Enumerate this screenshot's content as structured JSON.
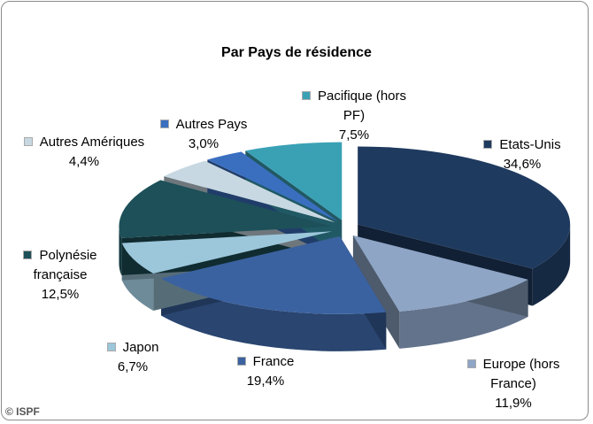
{
  "chart_data": {
    "type": "pie",
    "title": "Par Pays de résidence",
    "source": "© ISPF",
    "categories": [
      "Etats-Unis",
      "Europe (hors France)",
      "France",
      "Japon",
      "Polynésie française",
      "Autres Amériques",
      "Autres Pays",
      "Pacifique (hors PF)"
    ],
    "values": [
      34.6,
      11.9,
      19.4,
      6.7,
      12.5,
      4.4,
      3.0,
      7.5
    ],
    "value_labels": [
      "34,6%",
      "11,9%",
      "19,4%",
      "6,7%",
      "12,5%",
      "4,4%",
      "3,0%",
      "7,5%"
    ],
    "colors": [
      "#1f3a5f",
      "#8ea5c6",
      "#3b62a0",
      "#9cc6da",
      "#1d5059",
      "#c8d8e2",
      "#3a6fc0",
      "#3aa1b5"
    ]
  }
}
